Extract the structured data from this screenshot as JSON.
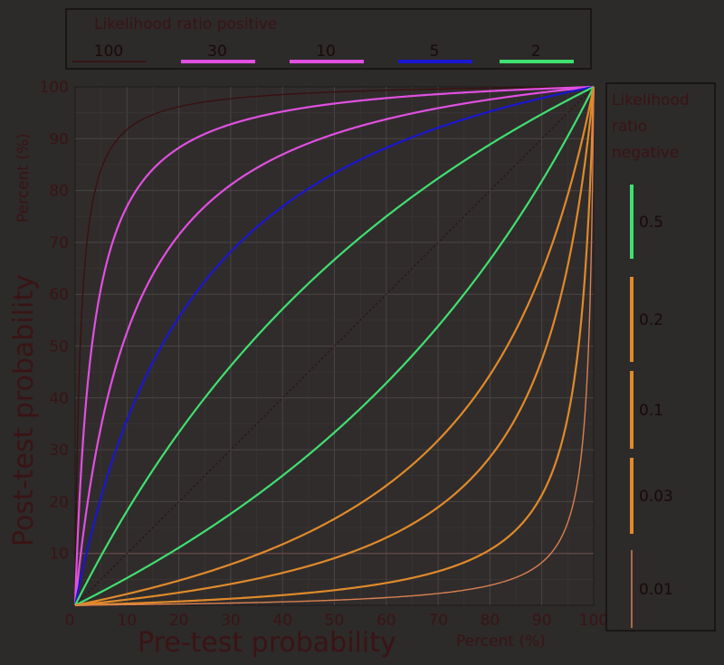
{
  "chart_data": {
    "type": "line",
    "xlabel": "Pre-test probability",
    "xunit": "Percent (%)",
    "ylabel": "Post-test probability",
    "yunit": "Percent (%)",
    "xlim": [
      0,
      100
    ],
    "ylim": [
      0,
      100
    ],
    "x_ticks": [
      0,
      10,
      20,
      30,
      40,
      50,
      60,
      70,
      80,
      90,
      100
    ],
    "y_ticks": [
      10,
      20,
      30,
      40,
      50,
      60,
      70,
      80,
      90,
      100
    ],
    "grid": true,
    "legend_positive": {
      "title": "Likelihood ratio positive",
      "entries": [
        {
          "label": "100",
          "lr": 100,
          "color": "#3a1010"
        },
        {
          "label": "30",
          "lr": 30,
          "color": "#e050e0"
        },
        {
          "label": "10",
          "lr": 10,
          "color": "#e050e0"
        },
        {
          "label": "5",
          "lr": 5,
          "color": "#1a16d0"
        },
        {
          "label": "2",
          "lr": 2,
          "color": "#40e070"
        }
      ]
    },
    "legend_negative": {
      "title_lines": [
        "Likelihood",
        "ratio",
        "negative"
      ],
      "entries": [
        {
          "label": "0.5",
          "lr": 0.5,
          "color": "#40e070"
        },
        {
          "label": "0.2",
          "lr": 0.2,
          "color": "#e08a2a"
        },
        {
          "label": "0.1",
          "lr": 0.1,
          "color": "#e08a2a"
        },
        {
          "label": "0.03",
          "lr": 0.03,
          "color": "#e08a2a"
        },
        {
          "label": "0.01",
          "lr": 0.01,
          "color": "#d88050"
        }
      ]
    },
    "identity_line_color": "#2a1010"
  }
}
